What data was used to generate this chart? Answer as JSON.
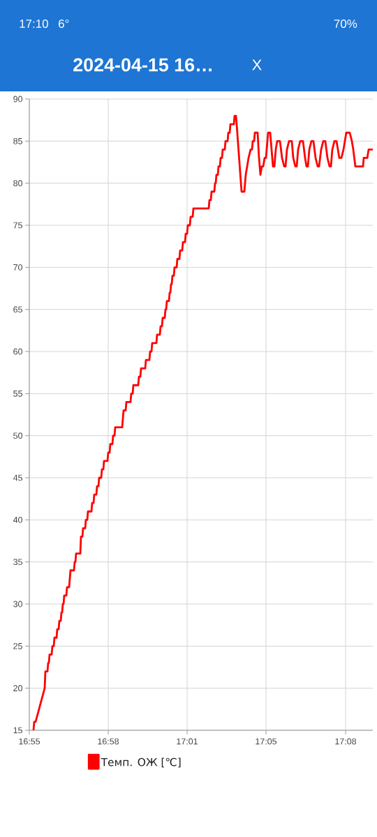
{
  "chart_data": {
    "type": "line",
    "title": "2024-04-15 16…",
    "annotations": [
      "17:10",
      "6°",
      "70%",
      "X"
    ],
    "x": [
      16.913,
      16.9135,
      16.9145,
      16.921,
      16.9215,
      16.923,
      16.9235,
      16.924,
      16.9245,
      16.926,
      16.9265,
      16.9275,
      16.928,
      16.9295,
      16.93,
      16.931,
      16.9315,
      16.9325,
      16.933,
      16.9335,
      16.934,
      16.9345,
      16.935,
      16.9365,
      16.937,
      16.9385,
      16.9395,
      16.942,
      16.9425,
      16.943,
      16.9435,
      16.9465,
      16.947,
      16.948,
      16.9485,
      16.95,
      16.9505,
      16.9515,
      16.952,
      16.9545,
      16.955,
      16.956,
      16.9565,
      16.958,
      16.9585,
      16.9595,
      16.96,
      16.9615,
      16.962,
      16.963,
      16.9635,
      16.966,
      16.9665,
      16.9675,
      16.968,
      16.9695,
      16.97,
      16.971,
      16.9715,
      16.9765,
      16.9775,
      16.979,
      16.9795,
      16.9825,
      16.983,
      16.984,
      16.9845,
      16.988,
      16.9885,
      16.9895,
      16.99,
      16.993,
      16.9935,
      16.996,
      16.9965,
      16.9975,
      16.998,
      17.001,
      17.0015,
      17.0035,
      17.004,
      17.005,
      17.0055,
      17.007,
      17.0075,
      17.008,
      17.0085,
      17.01,
      17.0105,
      17.011,
      17.0115,
      17.012,
      17.0125,
      17.0135,
      17.014,
      17.0155,
      17.016,
      17.0175,
      17.018,
      17.0195,
      17.02,
      17.0215,
      17.022,
      17.023,
      17.0235,
      17.025,
      17.0255,
      17.027,
      17.0275,
      17.0385,
      17.039,
      17.04,
      17.0405,
      17.0425,
      17.043,
      17.0435,
      17.044,
      17.045,
      17.0455,
      17.0465,
      17.047,
      17.048,
      17.0485,
      17.05,
      17.0505,
      17.052,
      17.0525,
      17.0535,
      17.054,
      17.0565,
      17.057,
      17.058,
      17.0585,
      17.062,
      17.064,
      17.065,
      17.067,
      17.0685,
      17.0695,
      17.07,
      17.071,
      17.0715,
      17.0735,
      17.0745,
      17.0755,
      17.0765,
      17.0775,
      17.0785,
      17.0795,
      17.081,
      17.0825,
      17.0835,
      17.0845,
      17.0855,
      17.0865,
      17.0875,
      17.0895,
      17.091,
      17.0925,
      17.0935,
      17.0945,
      17.096,
      17.098,
      17.099,
      17.1005,
      17.1015,
      17.1025,
      17.104,
      17.106,
      17.1075,
      17.1085,
      17.1095,
      17.1105,
      17.112,
      17.1135,
      17.115,
      17.1165,
      17.1175,
      17.119,
      17.1205,
      17.122,
      17.1235,
      17.125,
      17.126,
      17.127,
      17.1285,
      17.13,
      17.131,
      17.132,
      17.1335,
      17.135,
      17.137,
      17.1395,
      17.141,
      17.142,
      17.1435,
      17.149,
      17.1495,
      17.152,
      17.153,
      17.1555
    ],
    "series": [
      {
        "name": "Темп. ОЖ [℃]",
        "color": "#ff0000",
        "values": [
          15,
          16,
          16,
          20,
          22,
          22,
          23,
          23,
          24,
          24,
          25,
          25,
          26,
          26,
          27,
          27,
          28,
          28,
          29,
          29,
          30,
          30,
          31,
          31,
          32,
          32,
          34,
          34,
          35,
          35,
          36,
          36,
          38,
          38,
          39,
          39,
          40,
          40,
          41,
          41,
          42,
          42,
          43,
          43,
          44,
          44,
          45,
          45,
          46,
          46,
          47,
          47,
          48,
          48,
          49,
          49,
          50,
          50,
          51,
          51,
          53,
          53,
          54,
          54,
          55,
          55,
          56,
          56,
          57,
          57,
          58,
          58,
          59,
          59,
          60,
          60,
          61,
          61,
          62,
          62,
          63,
          63,
          64,
          64,
          65,
          65,
          66,
          66,
          67,
          67,
          68,
          68,
          69,
          69,
          70,
          70,
          71,
          71,
          72,
          72,
          73,
          73,
          74,
          74,
          75,
          75,
          76,
          76,
          77,
          77,
          78,
          78,
          79,
          79,
          80,
          80,
          81,
          81,
          82,
          82,
          83,
          83,
          84,
          84,
          85,
          85,
          86,
          86,
          87,
          87,
          88,
          88,
          87,
          79,
          79,
          81,
          83,
          84,
          84,
          85,
          85,
          86,
          86,
          83,
          81,
          82,
          82,
          83,
          83,
          86,
          86,
          84,
          82,
          82,
          84,
          85,
          85,
          83,
          82,
          82,
          84,
          85,
          85,
          83,
          82,
          82,
          84,
          85,
          85,
          83,
          82,
          82,
          84,
          85,
          85,
          83,
          82,
          82,
          84,
          85,
          85,
          83,
          82,
          82,
          84,
          85,
          85,
          84,
          83,
          83,
          84,
          86,
          86,
          85,
          84,
          82,
          82,
          83,
          83,
          84,
          84
        ]
      }
    ],
    "xlim": [
      16.91,
      17.156
    ],
    "ylim": [
      15,
      90
    ],
    "xticks": [
      {
        "value": 16.91,
        "label": "16:55"
      },
      {
        "value": 16.9665,
        "label": "16:58"
      },
      {
        "value": 17.023,
        "label": "17:01"
      },
      {
        "value": 17.0795,
        "label": "17:05"
      },
      {
        "value": 17.1365,
        "label": "17:08"
      }
    ],
    "yticks": [
      15,
      20,
      25,
      30,
      35,
      40,
      45,
      50,
      55,
      60,
      65,
      70,
      75,
      80,
      85,
      90
    ],
    "grid": true,
    "legend": "bottom"
  }
}
